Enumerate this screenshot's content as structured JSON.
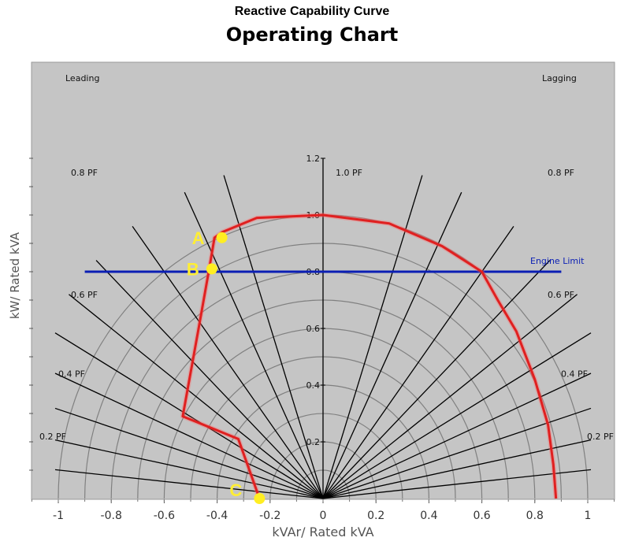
{
  "chart_data": {
    "type": "line",
    "supertitle": "Reactive Capability Curve",
    "title": "Operating Chart",
    "xlabel": "kVAr/ Rated kVA",
    "ylabel": "kW/ Rated kVA",
    "xlim": [
      -1,
      1
    ],
    "ylim": [
      0,
      1.2
    ],
    "x_ticks": [
      "-1",
      "-0.8",
      "-0.6",
      "-0.4",
      "-0.2",
      "0",
      "0.2",
      "0.4",
      "0.6",
      "0.8",
      "1"
    ],
    "x_tick_values": [
      -1,
      -0.8,
      -0.6,
      -0.4,
      -0.2,
      0,
      0.2,
      0.4,
      0.6,
      0.8,
      1
    ],
    "y_ticks": [
      "0.2",
      "0.4",
      "0.6",
      "0.8",
      "1.0",
      "1.2"
    ],
    "y_tick_values": [
      0.2,
      0.4,
      0.6,
      0.8,
      1.0,
      1.2
    ],
    "grid": {
      "circle_radii": [
        0.1,
        0.2,
        0.3,
        0.4,
        0.5,
        0.6,
        0.7,
        0.8,
        0.9,
        1.0
      ],
      "power_factor_lines": [
        0.1,
        0.2,
        0.3,
        0.4,
        0.5,
        0.6,
        0.7,
        0.8,
        0.9,
        0.95,
        1.0
      ],
      "pf_labels": {
        "leading": [
          "0.8 PF",
          "0.6 PF",
          "0.4 PF",
          "0.2 PF"
        ],
        "lagging": [
          "0.8 PF",
          "0.6 PF",
          "0.4 PF",
          "0.2 PF"
        ],
        "center": "1.0 PF"
      },
      "label_values": [
        0.8,
        0.6,
        0.4,
        0.2
      ]
    },
    "region_labels": {
      "leading": "Leading",
      "lagging": "Lagging"
    },
    "engine_limit": {
      "label": "Engine Limit",
      "y": 0.8,
      "x_range": [
        -0.9,
        0.9
      ],
      "color": "#0a1eb4"
    },
    "series": [
      {
        "color": "#e02020",
        "x": [
          -0.24,
          -0.32,
          -0.53,
          -0.47,
          -0.43,
          -0.41,
          -0.38,
          -0.25,
          0,
          0.25,
          0.45,
          0.6,
          0.66,
          0.73,
          0.8,
          0.85,
          0.87,
          0.88
        ],
        "y": [
          0.0,
          0.21,
          0.29,
          0.6,
          0.81,
          0.92,
          0.94,
          0.99,
          1.0,
          0.97,
          0.89,
          0.8,
          0.7,
          0.59,
          0.42,
          0.26,
          0.12,
          0.0
        ]
      }
    ],
    "points": [
      {
        "label": "A",
        "x": -0.4,
        "y": 0.92
      },
      {
        "label": "B",
        "x": -0.42,
        "y": 0.81
      },
      {
        "label": "C",
        "x": -0.24,
        "y": 0.0
      }
    ],
    "colors": {
      "plot_bg": "#c5c5c5",
      "circles": "#808080",
      "pf_lines": "#000000",
      "points": "#ffee22"
    }
  }
}
